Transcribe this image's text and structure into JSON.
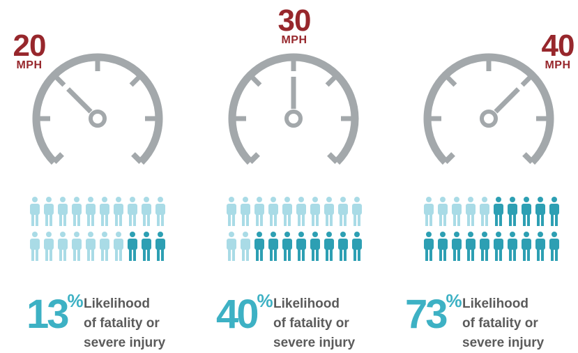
{
  "colors": {
    "speed": "#97272c",
    "gauge": "#a3a8ab",
    "person_light": "#a9dbe6",
    "person_dark": "#2d9fb3",
    "percent": "#3db1c4",
    "caption": "#5b5b5b"
  },
  "panels": [
    {
      "speed": "20",
      "unit": "MPH",
      "needle_angle_deg": -45,
      "people_total": 20,
      "people_dark": 3,
      "percent": "13",
      "percent_sign": "%",
      "caption_lines": [
        "Likelihood",
        "of fatality or",
        "severe injury"
      ]
    },
    {
      "speed": "30",
      "unit": "MPH",
      "needle_angle_deg": 0,
      "people_total": 20,
      "people_dark": 8,
      "percent": "40",
      "percent_sign": "%",
      "caption_lines": [
        "Likelihood",
        "of fatality or",
        "severe injury"
      ]
    },
    {
      "speed": "40",
      "unit": "MPH",
      "needle_angle_deg": 45,
      "people_total": 20,
      "people_dark": 15,
      "percent": "73",
      "percent_sign": "%",
      "caption_lines": [
        "Likelihood",
        "of fatality or",
        "severe injury"
      ]
    }
  ]
}
